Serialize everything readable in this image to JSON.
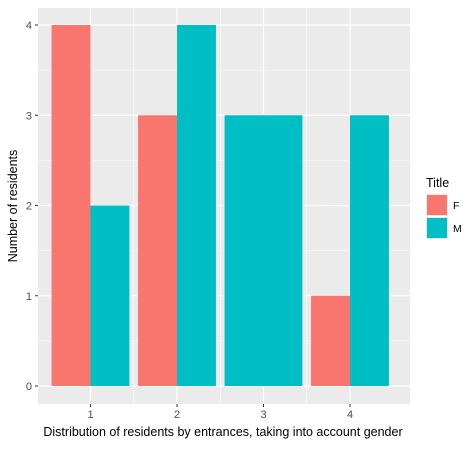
{
  "chart_data": {
    "type": "bar",
    "categories": [
      "1",
      "2",
      "3",
      "4"
    ],
    "series": [
      {
        "name": "F",
        "values": [
          4,
          3,
          0,
          1
        ]
      },
      {
        "name": "M",
        "values": [
          2,
          4,
          3,
          3
        ]
      }
    ],
    "xlabel": "Distribution of residents by entrances, taking into account gender",
    "ylabel": "Number of residents",
    "ylim": [
      0,
      4
    ],
    "yticks": [
      "0",
      "1",
      "2",
      "3",
      "4"
    ],
    "legend_title": "Title",
    "legend_position": "right",
    "grid": true,
    "colors": {
      "F": "#F8766D",
      "M": "#00BFC4",
      "panel": "#EBEBEB",
      "grid": "#FFFFFF"
    }
  }
}
